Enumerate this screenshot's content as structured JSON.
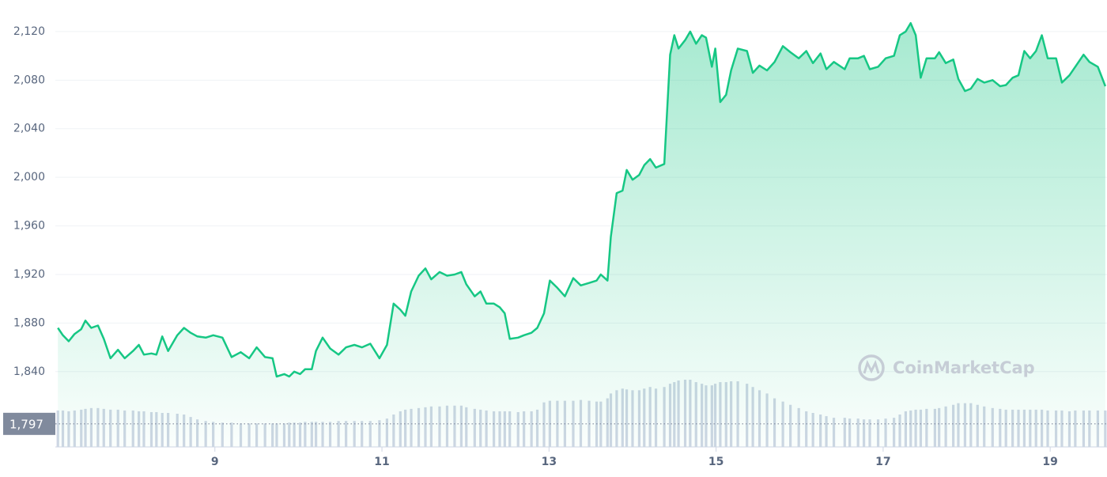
{
  "chart_data": {
    "type": "line",
    "x": [
      7.12,
      7.18,
      7.25,
      7.32,
      7.4,
      7.45,
      7.52,
      7.6,
      7.67,
      7.75,
      7.84,
      7.92,
      8.02,
      8.09,
      8.15,
      8.24,
      8.3,
      8.37,
      8.44,
      8.55,
      8.63,
      8.71,
      8.79,
      8.89,
      8.98,
      9.09,
      9.2,
      9.31,
      9.41,
      9.5,
      9.6,
      9.69,
      9.74,
      9.83,
      9.89,
      9.95,
      10.02,
      10.08,
      10.16,
      10.21,
      10.29,
      10.38,
      10.48,
      10.57,
      10.67,
      10.76,
      10.86,
      10.97,
      11.06,
      11.14,
      11.22,
      11.28,
      11.35,
      11.44,
      11.52,
      11.59,
      11.69,
      11.78,
      11.87,
      11.95,
      12.01,
      12.11,
      12.18,
      12.25,
      12.34,
      12.41,
      12.47,
      12.53,
      12.63,
      12.7,
      12.79,
      12.86,
      12.94,
      13.01,
      13.1,
      13.19,
      13.29,
      13.38,
      13.48,
      13.57,
      13.62,
      13.7,
      13.74,
      13.81,
      13.88,
      13.93,
      14.0,
      14.08,
      14.14,
      14.21,
      14.28,
      14.38,
      14.45,
      14.5,
      14.55,
      14.63,
      14.69,
      14.76,
      14.83,
      14.88,
      14.95,
      14.99,
      15.05,
      15.12,
      15.18,
      15.26,
      15.37,
      15.44,
      15.52,
      15.61,
      15.7,
      15.8,
      15.89,
      15.99,
      16.08,
      16.16,
      16.25,
      16.32,
      16.41,
      16.54,
      16.6,
      16.7,
      16.77,
      16.84,
      16.94,
      17.03,
      17.13,
      17.2,
      17.27,
      17.33,
      17.39,
      17.45,
      17.52,
      17.62,
      17.67,
      17.75,
      17.84,
      17.9,
      17.98,
      18.05,
      18.13,
      18.21,
      18.31,
      18.4,
      18.47,
      18.55,
      18.62,
      18.69,
      18.76,
      18.83,
      18.9,
      18.97,
      19.07,
      19.14,
      19.23,
      19.3,
      19.4,
      19.47,
      19.57,
      19.66
    ],
    "values": [
      1876,
      1870,
      1865,
      1871,
      1875,
      1882,
      1876,
      1878,
      1867,
      1851,
      1858,
      1851,
      1857,
      1862,
      1854,
      1855,
      1854,
      1869,
      1857,
      1870,
      1876,
      1872,
      1869,
      1868,
      1870,
      1868,
      1852,
      1856,
      1851,
      1860,
      1852,
      1851,
      1836,
      1838,
      1836,
      1840,
      1838,
      1842,
      1842,
      1857,
      1868,
      1859,
      1854,
      1860,
      1862,
      1860,
      1863,
      1851,
      1862,
      1896,
      1891,
      1886,
      1906,
      1919,
      1925,
      1916,
      1922,
      1919,
      1920,
      1922,
      1912,
      1902,
      1906,
      1896,
      1896,
      1893,
      1888,
      1867,
      1868,
      1870,
      1872,
      1876,
      1888,
      1915,
      1909,
      1902,
      1917,
      1911,
      1913,
      1915,
      1920,
      1915,
      1951,
      1987,
      1989,
      2006,
      1998,
      2002,
      2010,
      2015,
      2008,
      2011,
      2101,
      2117,
      2106,
      2113,
      2120,
      2110,
      2117,
      2115,
      2091,
      2106,
      2062,
      2068,
      2088,
      2106,
      2104,
      2086,
      2092,
      2088,
      2095,
      2108,
      2103,
      2098,
      2104,
      2094,
      2102,
      2089,
      2095,
      2089,
      2098,
      2098,
      2100,
      2089,
      2091,
      2098,
      2100,
      2117,
      2120,
      2127,
      2117,
      2082,
      2098,
      2098,
      2103,
      2094,
      2097,
      2081,
      2071,
      2073,
      2081,
      2078,
      2080,
      2075,
      2076,
      2082,
      2084,
      2104,
      2098,
      2104,
      2117,
      2098,
      2098,
      2078,
      2084,
      2091,
      2101,
      2095,
      2091,
      2075
    ],
    "color": "#16c784",
    "volume": [
      45,
      45,
      44,
      45,
      46,
      47,
      48,
      48,
      47,
      46,
      46,
      45,
      45,
      44,
      44,
      43,
      43,
      42,
      42,
      41,
      40,
      37,
      34,
      32,
      31,
      30,
      30,
      29,
      29,
      29,
      29,
      29,
      29,
      29,
      30,
      30,
      30,
      31,
      31,
      31,
      31,
      31,
      32,
      32,
      32,
      32,
      32,
      33,
      35,
      40,
      44,
      46,
      47,
      48,
      49,
      50,
      50,
      51,
      51,
      51,
      49,
      47,
      46,
      45,
      44,
      44,
      44,
      44,
      43,
      44,
      44,
      46,
      55,
      57,
      57,
      57,
      57,
      58,
      57,
      56,
      56,
      60,
      66,
      70,
      72,
      71,
      70,
      70,
      72,
      74,
      72,
      74,
      78,
      80,
      82,
      83,
      83,
      80,
      78,
      76,
      76,
      78,
      80,
      80,
      81,
      81,
      78,
      74,
      70,
      66,
      60,
      56,
      52,
      48,
      44,
      42,
      40,
      38,
      36,
      36,
      35,
      35,
      34,
      34,
      34,
      35,
      36,
      40,
      44,
      45,
      46,
      46,
      47,
      47,
      48,
      50,
      52,
      54,
      54,
      54,
      52,
      50,
      48,
      47,
      46,
      46,
      46,
      46,
      46,
      46,
      46,
      45,
      45,
      45,
      44,
      45,
      45,
      45,
      45,
      45
    ],
    "volume_color": "#cfd6e4",
    "xlim": [
      7.09,
      19.68
    ],
    "ylim": [
      1778,
      2146
    ],
    "xticks": [
      9,
      11,
      13,
      15,
      17,
      19
    ],
    "yticks": [
      {
        "value": 1840,
        "label": "1,840"
      },
      {
        "value": 1880,
        "label": "1,880"
      },
      {
        "value": 1920,
        "label": "1,920"
      },
      {
        "value": 1960,
        "label": "1,960"
      },
      {
        "value": 2000,
        "label": "2,000"
      },
      {
        "value": 2040,
        "label": "2,040"
      },
      {
        "value": 2080,
        "label": "2,080"
      },
      {
        "value": 2120,
        "label": "2,120"
      }
    ],
    "grid": true,
    "reference_line": {
      "value": 1797,
      "label": "1,797"
    },
    "watermark": "CoinMarketCap"
  }
}
